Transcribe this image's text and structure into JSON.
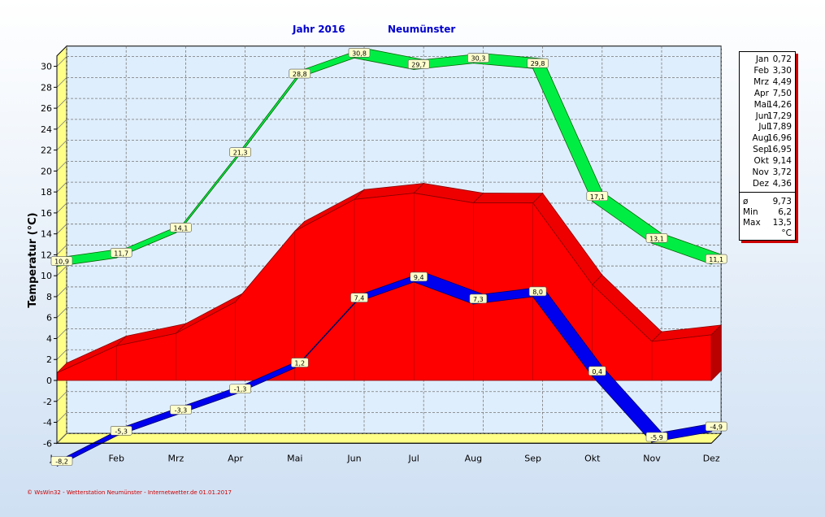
{
  "header": {
    "year_label": "Jahr  2016",
    "station": "Neumünster"
  },
  "footer": "© WsWin32 - Wetterstation Neumünster - Internetwetter.de  01.01.2017",
  "legend": {
    "months": [
      {
        "name": "Jan",
        "value": "0,72"
      },
      {
        "name": "Feb",
        "value": "3,30"
      },
      {
        "name": "Mrz",
        "value": "4,49"
      },
      {
        "name": "Apr",
        "value": "7,50"
      },
      {
        "name": "Mai",
        "value": "14,26"
      },
      {
        "name": "Jun",
        "value": "17,29"
      },
      {
        "name": "Jul",
        "value": "17,89"
      },
      {
        "name": "Aug",
        "value": "16,96"
      },
      {
        "name": "Sep",
        "value": "16,95"
      },
      {
        "name": "Okt",
        "value": "9,14"
      },
      {
        "name": "Nov",
        "value": "3,72"
      },
      {
        "name": "Dez",
        "value": "4,36"
      }
    ],
    "stats": [
      {
        "name": "ø",
        "value": "9,73"
      },
      {
        "name": "Min",
        "value": "6,2"
      },
      {
        "name": "Max",
        "value": "13,5"
      }
    ],
    "unit": "°C"
  },
  "chart_data": {
    "type": "area",
    "title": "Jahr  2016",
    "subtitle": "Neumünster",
    "ylabel": "Temperatur  (°C)",
    "xlabel": "",
    "ylim": [
      -6,
      31
    ],
    "yticks": [
      -6,
      -4,
      -2,
      0,
      2,
      4,
      6,
      8,
      10,
      12,
      14,
      16,
      18,
      20,
      22,
      24,
      26,
      28,
      30
    ],
    "categories": [
      "Jan",
      "Feb",
      "Mrz",
      "Apr",
      "Mai",
      "Jun",
      "Jul",
      "Aug",
      "Sep",
      "Okt",
      "Nov",
      "Dez"
    ],
    "grid": true,
    "series": [
      {
        "kind": "max",
        "color": "#00ee44",
        "values": [
          10.9,
          11.7,
          14.1,
          21.3,
          28.8,
          30.8,
          29.7,
          30.3,
          29.8,
          17.1,
          13.1,
          11.1
        ],
        "labels": [
          "10,9",
          "11,7",
          "14,1",
          "21,3",
          "28,8",
          "30,8",
          "29,7",
          "30,3",
          "29,8",
          "17,1",
          "13,1",
          "11,1"
        ]
      },
      {
        "kind": "mean",
        "color": "#ff0000",
        "values": [
          0.72,
          3.3,
          4.49,
          7.5,
          14.26,
          17.29,
          17.89,
          16.96,
          16.95,
          9.14,
          3.72,
          4.36
        ]
      },
      {
        "kind": "min",
        "color": "#0000ee",
        "values": [
          -8.2,
          -5.3,
          -3.3,
          -1.3,
          1.2,
          7.4,
          9.4,
          7.3,
          8.0,
          0.4,
          -5.9,
          -4.9
        ],
        "labels": [
          "-8,2",
          "-5,3",
          "-3,3",
          "-1,3",
          "1,2",
          "7,4",
          "9,4",
          "7,3",
          "8,0",
          "0,4",
          "-5,9",
          "-4,9"
        ]
      }
    ]
  }
}
